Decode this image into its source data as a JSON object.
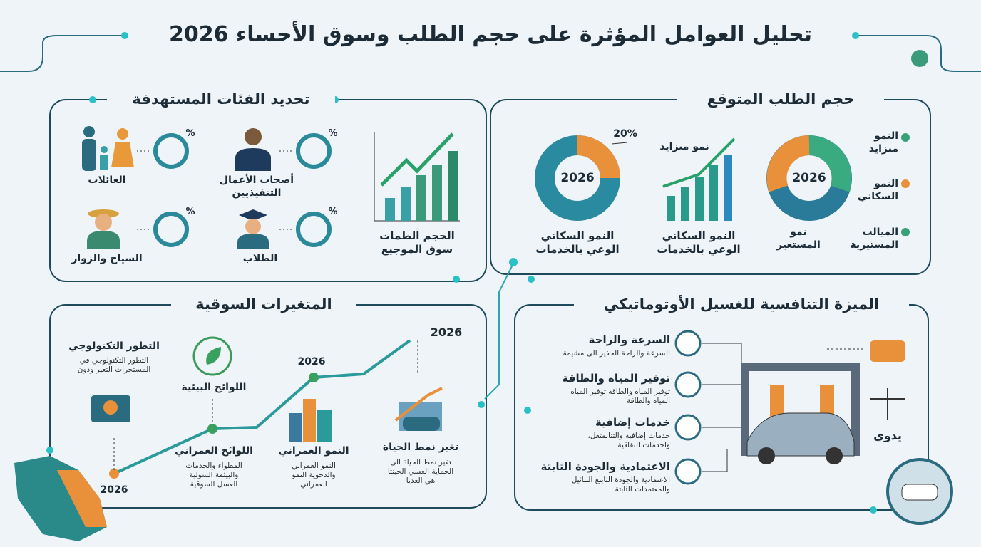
{
  "title": "تحليل العوامل المؤثرة على حجم الطلب وسوق الأحساء 2026",
  "target_groups": {
    "title": "تحديد الفئات المستهدفة",
    "items": [
      {
        "label": "العائلات",
        "badge": "%"
      },
      {
        "label": "أصحاب الأعمال\nالتنفيذيين",
        "badge": "%"
      },
      {
        "label": "السياح والزوار",
        "badge": "%"
      },
      {
        "label": "الطلاب",
        "badge": "%"
      }
    ],
    "chart_caption": "الحجم الطمات\nسوق الموجيع"
  },
  "expected_demand": {
    "title": "حجم الطلب المتوقع",
    "donut_1": {
      "center": "2026",
      "callout": "20%",
      "caption": "النمو السكاني\nالوعي بالخدمات"
    },
    "bar_chart": {
      "label": "نمو متزايد",
      "caption": "النمو السكاني\nالوعي بالخدمات"
    },
    "donut_2": {
      "center": "2026",
      "legend": [
        "النمو\nمتزايد",
        "النمو\nالسكاني",
        "الميالب\nالمستيرية",
        "نمو\nالمستعير"
      ]
    }
  },
  "market_variables": {
    "title": "المتغيرات السوقية",
    "items": [
      {
        "title": "التطور التكنولوجي",
        "description": "التطور التكنولوجي في\nالمستجرات التغير ودون"
      },
      {
        "title": "اللوائح البيئية"
      },
      {
        "title": "اللوائح العمراني",
        "description": "المطواء والخدمات\nوالبيئمة السولية\nالعسل السوقية"
      },
      {
        "title": "النمو العمراني",
        "description": "النمو العمراني\nوالدحوية النمو\nالعمراني"
      },
      {
        "title": "تغير نمط الحياة",
        "description": "تفير نمط الحياة الى\nالحماية العسي الجينتا\nهي العديا"
      }
    ],
    "years": [
      "2026",
      "2026",
      "2026"
    ]
  },
  "competitive_advantage": {
    "title": "الميزة التنافسية للغسيل الأوتوماتيكي",
    "items": [
      {
        "title": "السرعة والراحة",
        "description": "السرعة والراحة الحفير الى مشيمة"
      },
      {
        "title": "توفير المياه والطاقة",
        "description": "توفير المياه والطاقة توفير المياه\nالمياه والطاقة"
      },
      {
        "title": "خدمات إضافية",
        "description": "خدمات إضافية والتنانمتعل،\nواخدمات التقاقية"
      },
      {
        "title": "الاعتمادية والجودة الثابتة",
        "description": "الاعتمادية والجودة الثابنغ التنائيل\nوالمعتمدات الثابتة"
      }
    ],
    "manual_label": "يدوي"
  }
}
